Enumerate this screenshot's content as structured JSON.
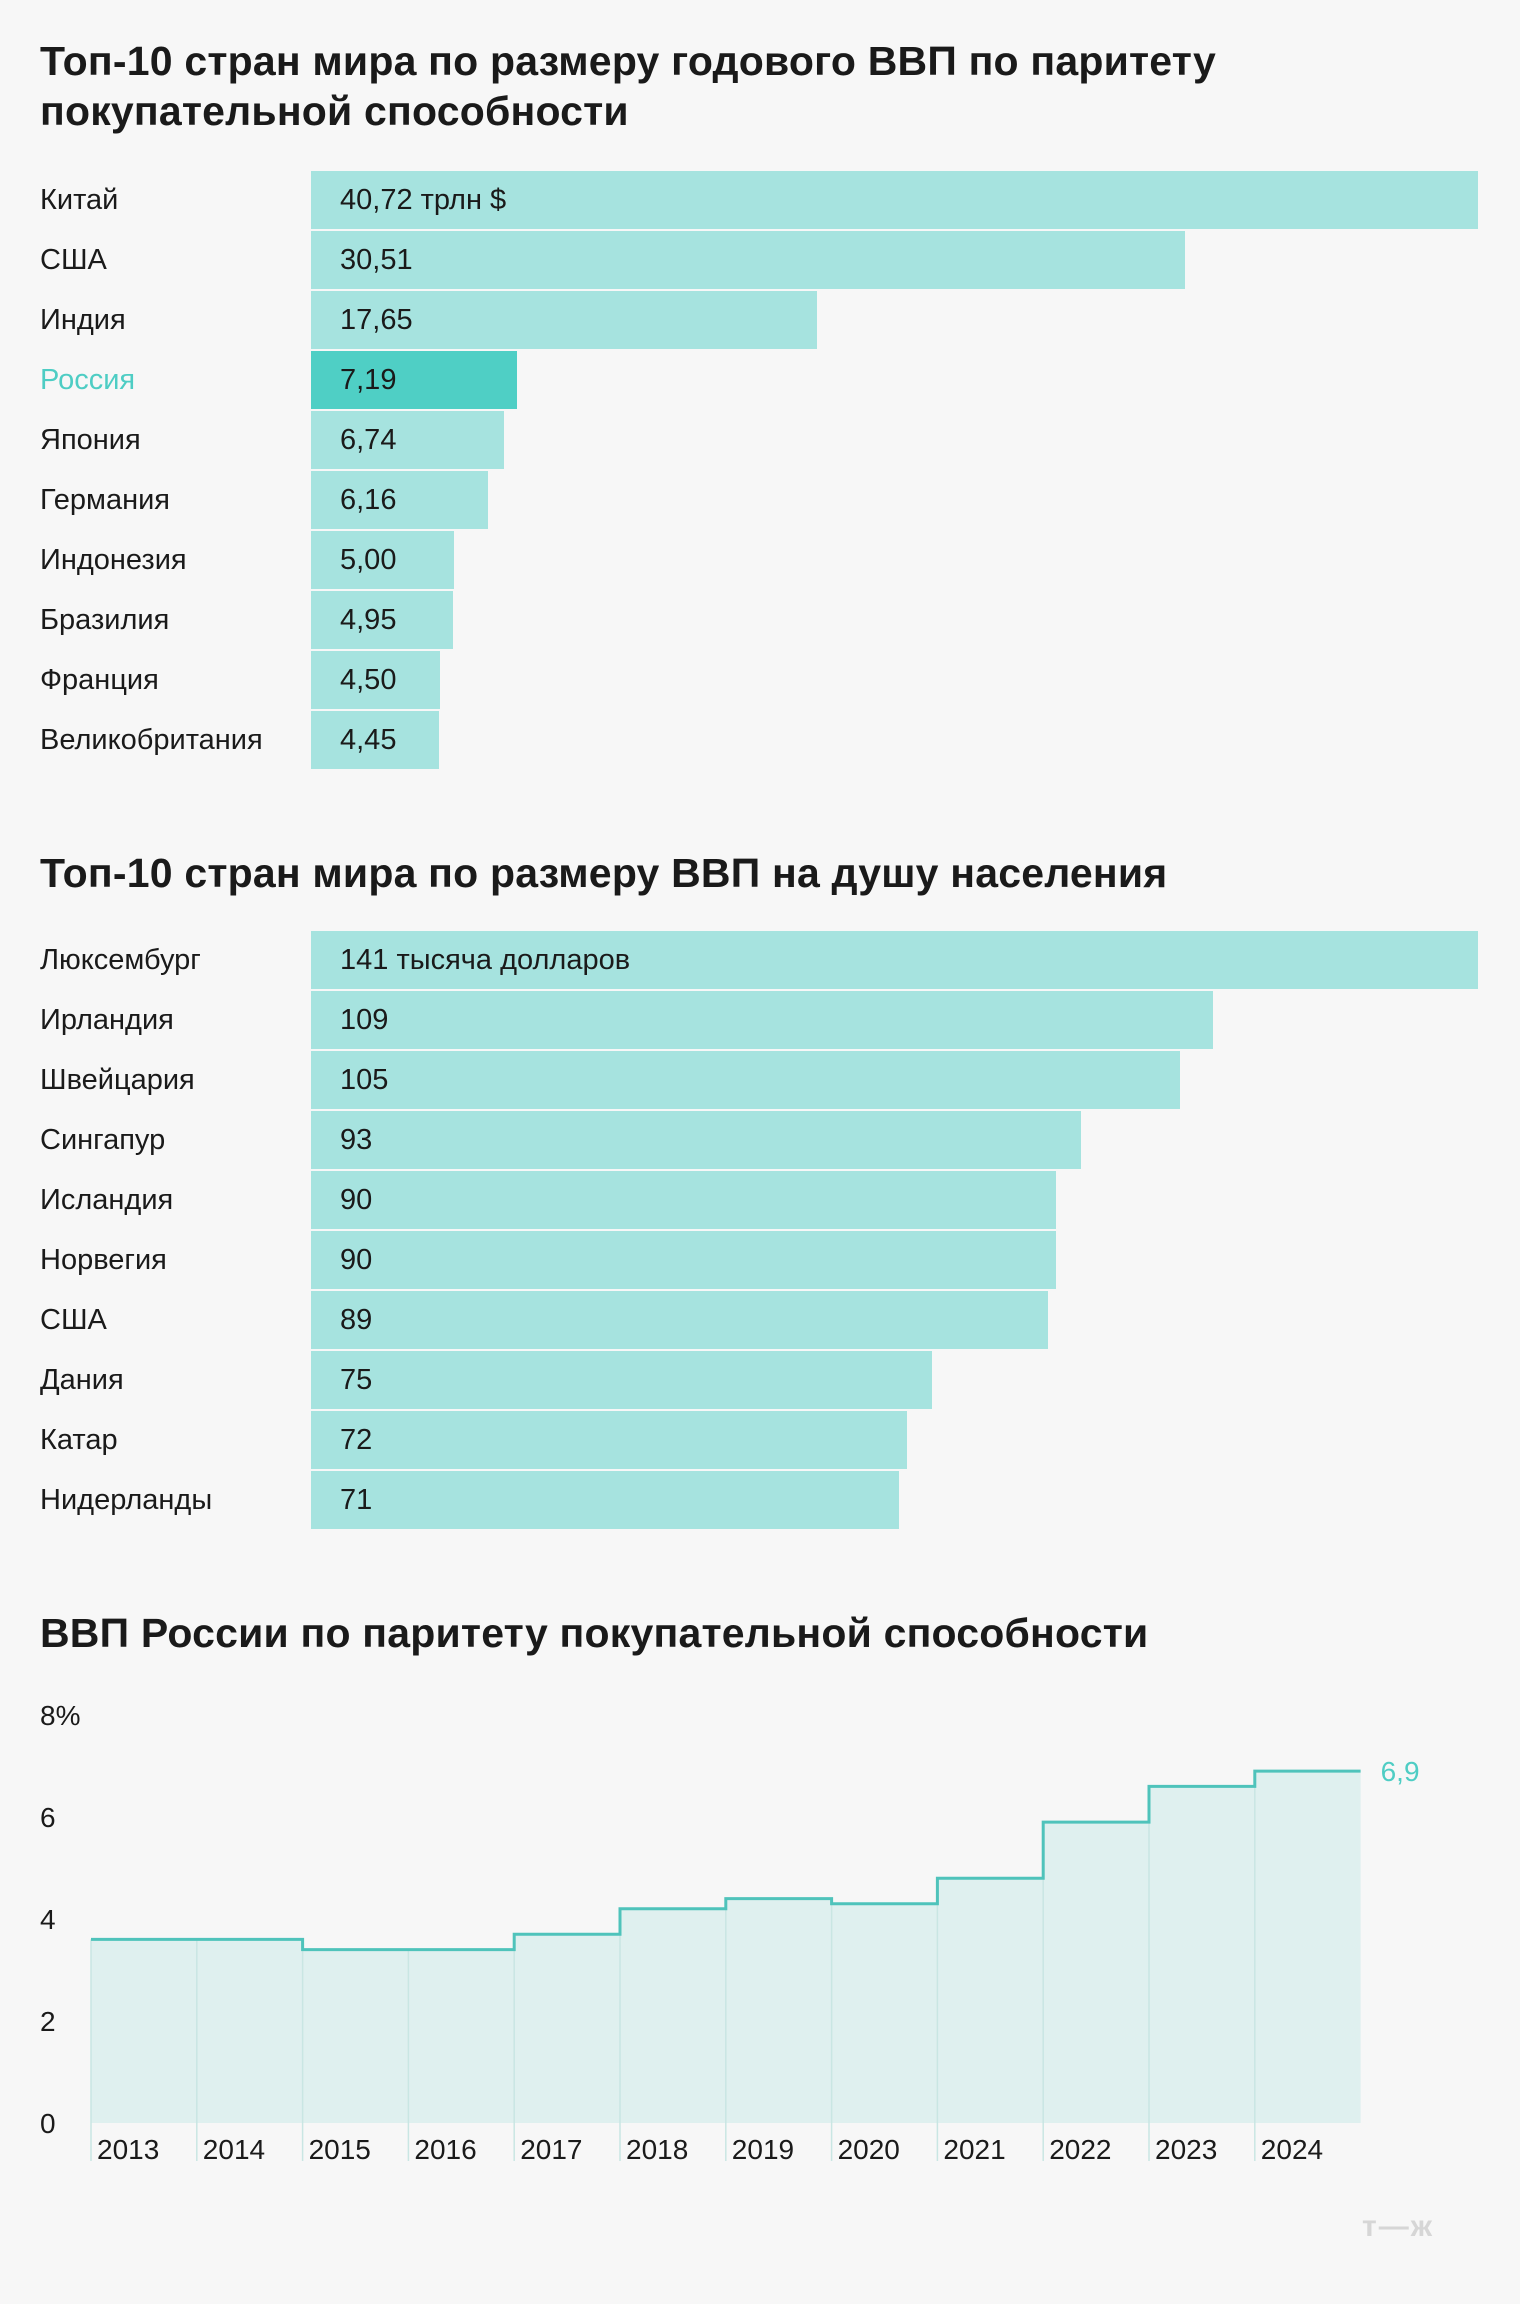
{
  "colors": {
    "bar": "#a6e3df",
    "highlight_bar": "#4fcfc5",
    "highlight_text": "#4ecdc4",
    "area_fill": "#dff0ef",
    "line": "#4fc3bb"
  },
  "chart_data": [
    {
      "type": "bar",
      "orientation": "horizontal",
      "title": "Топ-10 стран мира по размеру годового ВВП по паритету покупательной способности",
      "categories": [
        "Китай",
        "США",
        "Индия",
        "Россия",
        "Япония",
        "Германия",
        "Индонезия",
        "Бразилия",
        "Франция",
        "Великобритания"
      ],
      "values": [
        40.72,
        30.51,
        17.65,
        7.19,
        6.74,
        6.16,
        5.0,
        4.95,
        4.5,
        4.45
      ],
      "value_labels": [
        "40,72 трлн $",
        "30,51",
        "17,65",
        "7,19",
        "6,74",
        "6,16",
        "5,00",
        "4,95",
        "4,50",
        "4,45"
      ],
      "highlight": "Россия",
      "xlim": [
        0,
        40.72
      ]
    },
    {
      "type": "bar",
      "orientation": "horizontal",
      "title": "Топ-10 стран мира по размеру ВВП на душу населения",
      "categories": [
        "Люксембург",
        "Ирландия",
        "Швейцария",
        "Сингапур",
        "Исландия",
        "Норвегия",
        "США",
        "Дания",
        "Катар",
        "Нидерланды"
      ],
      "values": [
        141,
        109,
        105,
        93,
        90,
        90,
        89,
        75,
        72,
        71
      ],
      "value_labels": [
        "141 тысяча долларов",
        "109",
        "105",
        "93",
        "90",
        "90",
        "89",
        "75",
        "72",
        "71"
      ],
      "xlim": [
        0,
        141
      ]
    },
    {
      "type": "area",
      "step": true,
      "title": "ВВП России по паритету покупательной способности",
      "x": [
        "2013",
        "2014",
        "2015",
        "2016",
        "2017",
        "2018",
        "2019",
        "2020",
        "2021",
        "2022",
        "2023",
        "2024"
      ],
      "values": [
        3.6,
        3.6,
        3.4,
        3.4,
        3.7,
        4.2,
        4.4,
        4.3,
        4.8,
        5.9,
        6.6,
        6.9
      ],
      "y_ticks": [
        "8%",
        "6",
        "4",
        "2",
        "0"
      ],
      "y_tick_values": [
        8,
        6,
        4,
        2,
        0
      ],
      "ylim": [
        0,
        8
      ],
      "end_label": "6,9"
    }
  ],
  "watermark": "т—ж"
}
